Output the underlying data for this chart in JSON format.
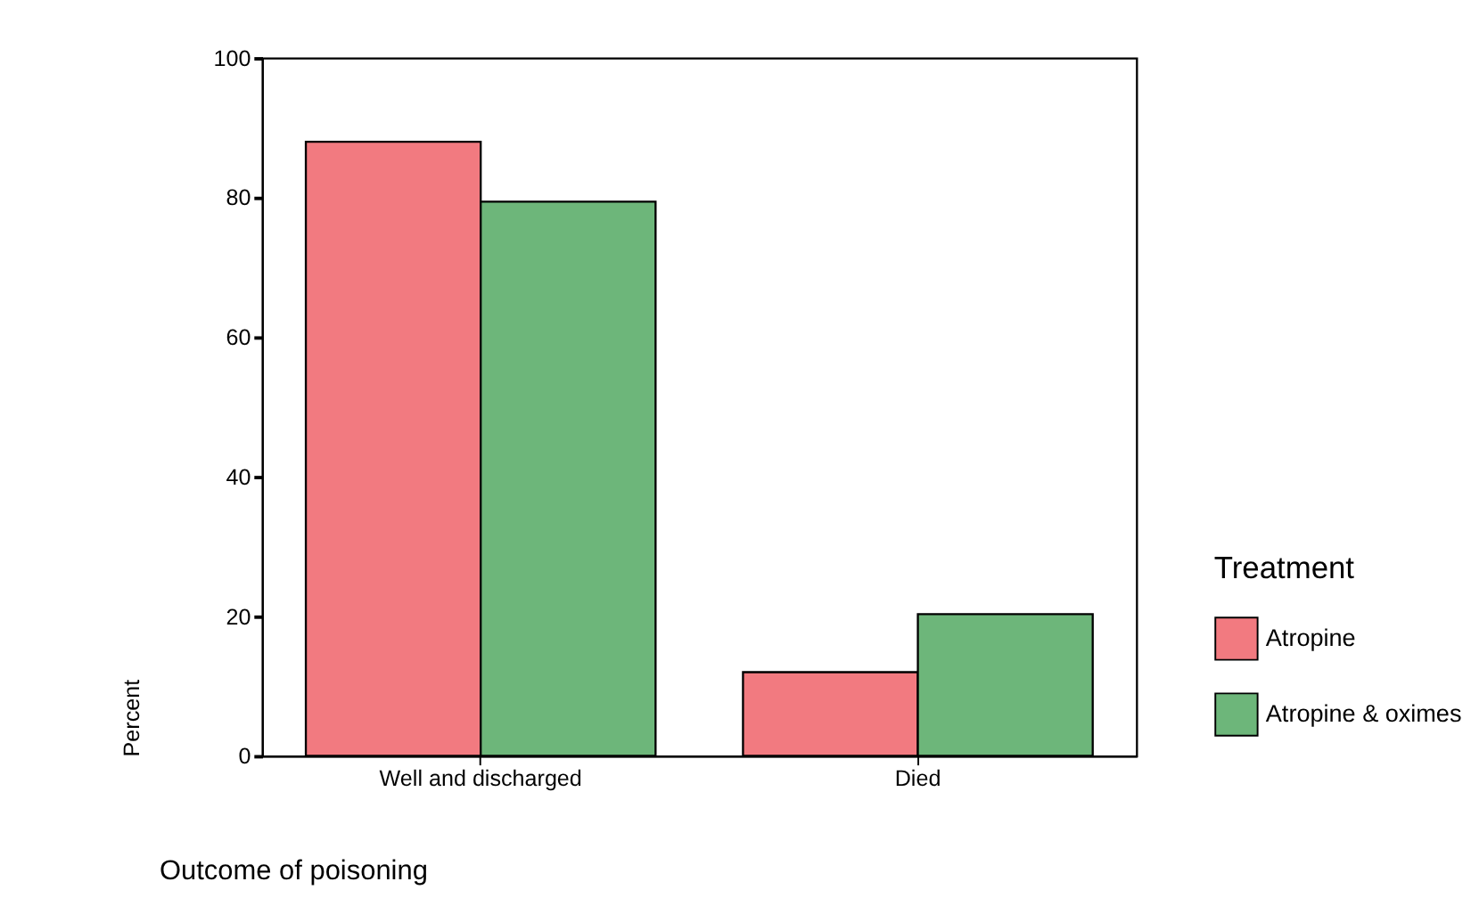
{
  "chart_data": {
    "type": "bar",
    "xlabel": "Outcome of poisoning",
    "ylabel": "Percent",
    "legend_title": "Treatment",
    "categories": [
      "Well and discharged",
      "Died"
    ],
    "series": [
      {
        "name": "Atropine",
        "color": "#f27a80",
        "values": [
          88,
          12
        ]
      },
      {
        "name": "Atropine & oximes",
        "color": "#6db67a",
        "values": [
          79.4,
          20.3
        ]
      }
    ],
    "ylim": [
      0,
      100
    ],
    "yticks": [
      0,
      20,
      40,
      60,
      80,
      100
    ],
    "grid": false,
    "legend": "right"
  }
}
